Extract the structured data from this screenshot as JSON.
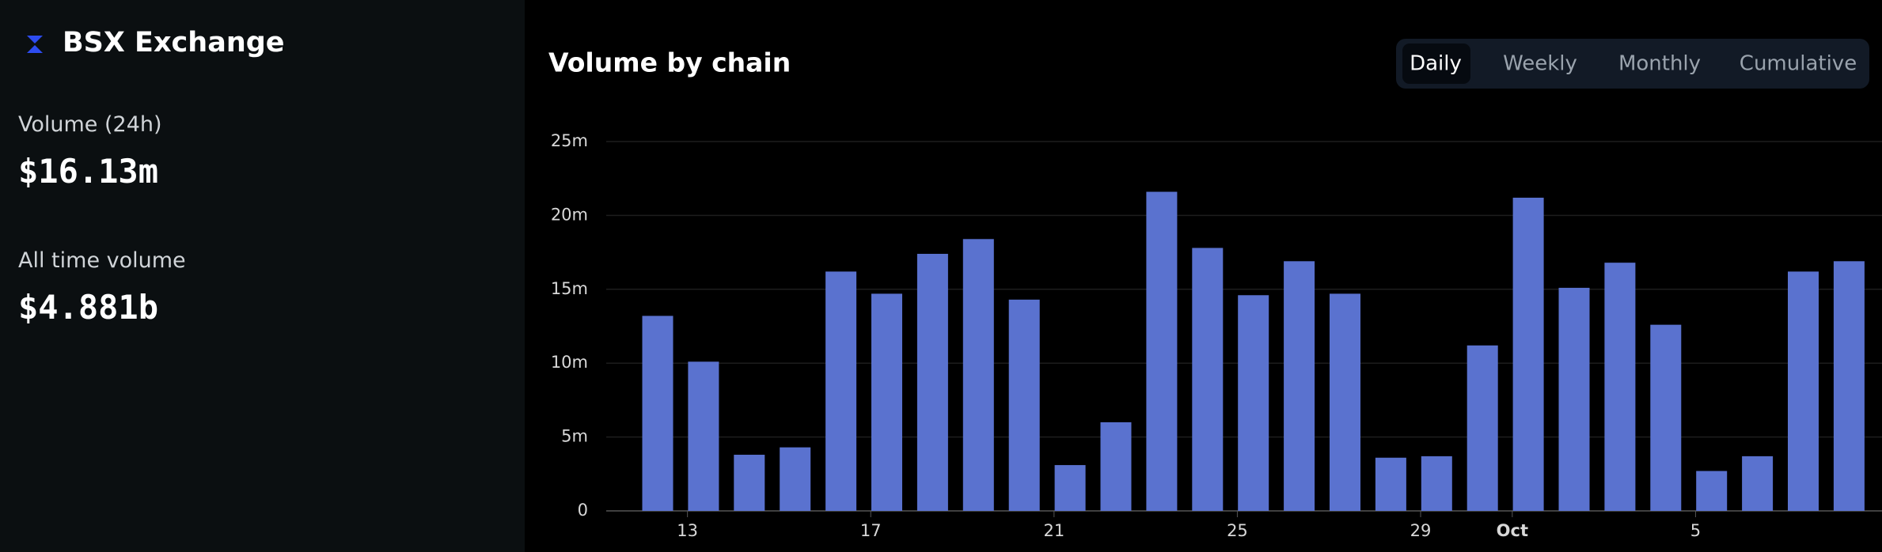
{
  "app": {
    "name": "BSX Exchange"
  },
  "stats": [
    {
      "label": "Volume (24h)",
      "value": "$16.13m"
    },
    {
      "label": "All time volume",
      "value": "$4.881b"
    }
  ],
  "tabs": [
    "Daily",
    "Weekly",
    "Monthly",
    "Cumulative"
  ],
  "chart_data": {
    "type": "bar",
    "title": "Volume by chain",
    "color": "#5a72cf",
    "grid": true,
    "categories": [
      null,
      "13",
      null,
      null,
      null,
      "17",
      null,
      null,
      null,
      "21",
      null,
      null,
      null,
      "25",
      null,
      null,
      null,
      "29",
      null,
      "Oct",
      null,
      null,
      null,
      "5",
      null,
      null,
      null
    ],
    "values": [
      13200000,
      10100000,
      3800000,
      4300000,
      16200000,
      14700000,
      17400000,
      18400000,
      14300000,
      3100000,
      6000000,
      21600000,
      17800000,
      14600000,
      16900000,
      14700000,
      3600000,
      3700000,
      11200000,
      21200000,
      15100000,
      16800000,
      12600000,
      2700000,
      3700000,
      16200000,
      16900000
    ],
    "ylim": [
      0,
      25000000
    ],
    "yticks": [
      0,
      {
        "value": 5000000,
        "label": "5m"
      },
      {
        "value": 10000000,
        "label": "10m"
      },
      {
        "value": 15000000,
        "label": "15m"
      },
      {
        "value": 20000000,
        "label": "20m"
      },
      {
        "value": 25000000,
        "label": "25m"
      }
    ]
  }
}
